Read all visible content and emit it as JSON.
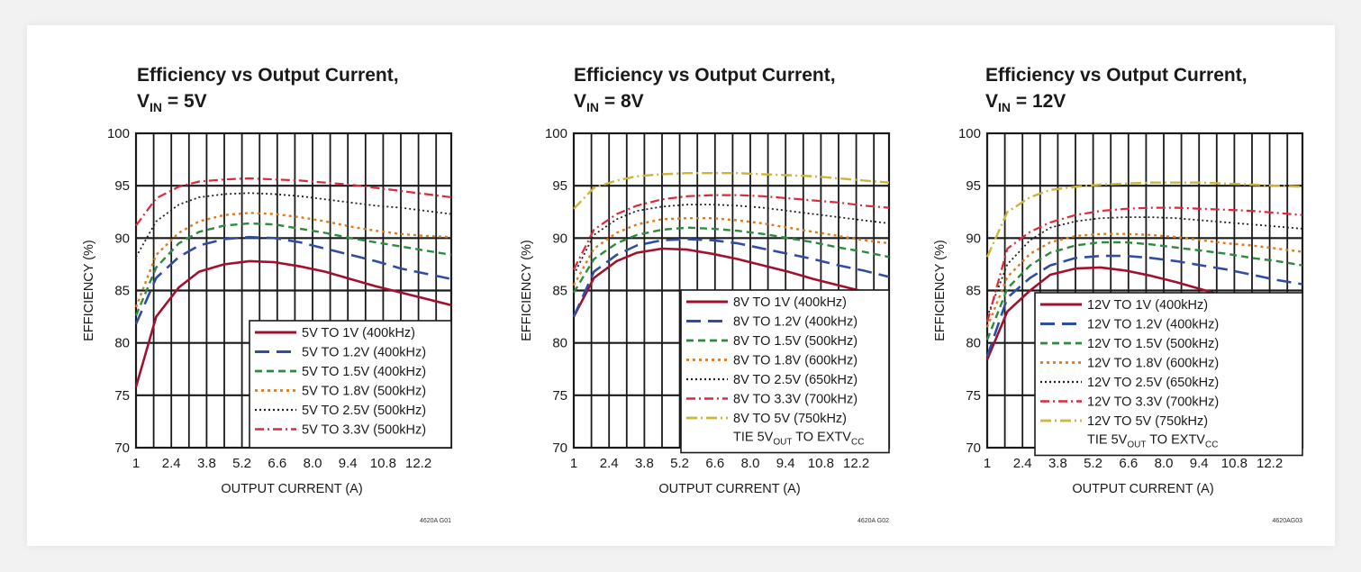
{
  "colors": {
    "grid": "#1a1a1a",
    "series": [
      "#a3102d",
      "#2f4ea1",
      "#2e8b3e",
      "#e07b1c",
      "#222222",
      "#e0283a",
      "#cdb53a"
    ]
  },
  "chart_data": [
    {
      "type": "line",
      "title": "Efficiency vs Output Current,",
      "subtitle_v": "V",
      "subtitle_sub": "IN",
      "subtitle_rest": " = 5V",
      "xlabel": "OUTPUT CURRENT (A)",
      "ylabel": "EFFICIENCY (%)",
      "xlim": [
        1,
        13.5
      ],
      "ylim": [
        70,
        100
      ],
      "xticks": [
        "1",
        "2.4",
        "3.8",
        "5.2",
        "6.6",
        "8.0",
        "9.4",
        "10.8",
        "12.2"
      ],
      "yticks": [
        "70",
        "75",
        "80",
        "85",
        "90",
        "95",
        "100"
      ],
      "grid": true,
      "legend_position": "bottom-right",
      "note": "",
      "code": "4620A G01",
      "series": [
        {
          "name": "5V TO 1V (400kHz)",
          "style": "solid",
          "x": [
            1,
            1.8,
            2.7,
            3.5,
            4.5,
            5.5,
            6.5,
            7.5,
            8.5,
            9.5,
            10.5,
            11.5,
            12.5,
            13.5
          ],
          "y": [
            75.8,
            82.5,
            85.3,
            86.8,
            87.5,
            87.8,
            87.7,
            87.3,
            86.8,
            86.1,
            85.4,
            84.8,
            84.2,
            83.6
          ]
        },
        {
          "name": "5V TO 1.2V (400kHz)",
          "style": "longdash",
          "x": [
            1,
            1.8,
            2.7,
            3.5,
            4.5,
            5.5,
            6.5,
            7.5,
            8.5,
            9.5,
            10.5,
            11.5,
            12.5,
            13.5
          ],
          "y": [
            81.8,
            86.2,
            88.2,
            89.3,
            89.9,
            90.1,
            90.0,
            89.6,
            89.0,
            88.4,
            87.8,
            87.1,
            86.6,
            86.1
          ]
        },
        {
          "name": "5V TO 1.5V (400kHz)",
          "style": "dash",
          "x": [
            1,
            1.8,
            2.7,
            3.5,
            4.5,
            5.5,
            6.5,
            7.5,
            8.5,
            9.5,
            10.5,
            11.5,
            12.5,
            13.5
          ],
          "y": [
            82.6,
            87.2,
            89.5,
            90.6,
            91.2,
            91.4,
            91.3,
            90.9,
            90.5,
            90.0,
            89.6,
            89.2,
            88.8,
            88.4
          ]
        },
        {
          "name": "5V TO 1.8V (500kHz)",
          "style": "dot-orange",
          "x": [
            1,
            1.8,
            2.7,
            3.5,
            4.5,
            5.5,
            6.5,
            7.5,
            8.5,
            9.5,
            10.5,
            11.5,
            12.5,
            13.5
          ],
          "y": [
            83.4,
            88.4,
            90.5,
            91.6,
            92.2,
            92.4,
            92.3,
            92.0,
            91.6,
            91.1,
            90.7,
            90.4,
            90.2,
            90.1
          ]
        },
        {
          "name": "5V TO 2.5V (500kHz)",
          "style": "dot",
          "x": [
            1,
            1.8,
            2.7,
            3.5,
            4.5,
            5.5,
            6.5,
            7.5,
            8.5,
            9.5,
            10.5,
            11.5,
            12.5,
            13.5
          ],
          "y": [
            88.2,
            91.6,
            93.2,
            93.9,
            94.2,
            94.3,
            94.2,
            94.0,
            93.7,
            93.4,
            93.1,
            92.9,
            92.6,
            92.3
          ]
        },
        {
          "name": "5V TO 3.3V (500kHz)",
          "style": "dashdot",
          "x": [
            1,
            1.8,
            2.7,
            3.5,
            4.5,
            5.5,
            6.5,
            7.5,
            8.5,
            9.5,
            10.5,
            11.5,
            12.5,
            13.5
          ],
          "y": [
            91.2,
            93.8,
            94.9,
            95.4,
            95.6,
            95.7,
            95.6,
            95.5,
            95.3,
            95.1,
            94.8,
            94.5,
            94.2,
            93.9
          ]
        }
      ]
    },
    {
      "type": "line",
      "title": "Efficiency vs Output Current,",
      "subtitle_v": "V",
      "subtitle_sub": "IN",
      "subtitle_rest": " = 8V",
      "xlabel": "OUTPUT CURRENT (A)",
      "ylabel": "EFFICIENCY (%)",
      "xlim": [
        1,
        13.5
      ],
      "ylim": [
        70,
        100
      ],
      "xticks": [
        "1",
        "2.4",
        "3.8",
        "5.2",
        "6.6",
        "8.0",
        "9.4",
        "10.8",
        "12.2"
      ],
      "yticks": [
        "70",
        "75",
        "80",
        "85",
        "90",
        "95",
        "100"
      ],
      "grid": true,
      "legend_position": "bottom-right",
      "note": "TIE 5V",
      "note_sub": "OUT",
      "note_mid": " TO EXTV",
      "note_sub2": "CC",
      "code": "4620A G02",
      "series": [
        {
          "name": "8V TO 1V (400kHz)",
          "style": "solid",
          "x": [
            1,
            1.8,
            2.7,
            3.5,
            4.5,
            5.5,
            6.5,
            7.5,
            8.5,
            9.5,
            10.5,
            11.5,
            12.5,
            13.5
          ],
          "y": [
            82.5,
            86.2,
            87.8,
            88.6,
            89.0,
            88.9,
            88.5,
            88.0,
            87.4,
            86.8,
            86.1,
            85.5,
            84.9,
            84.3
          ]
        },
        {
          "name": "8V TO 1.2V (400kHz)",
          "style": "longdash",
          "x": [
            1,
            1.8,
            2.7,
            3.5,
            4.5,
            5.5,
            6.5,
            7.5,
            8.5,
            9.5,
            10.5,
            11.5,
            12.5,
            13.5
          ],
          "y": [
            82.5,
            86.8,
            88.4,
            89.3,
            89.8,
            89.9,
            89.8,
            89.5,
            89.0,
            88.5,
            88.0,
            87.4,
            86.9,
            86.3
          ]
        },
        {
          "name": "8V TO 1.5V (500kHz)",
          "style": "dash",
          "x": [
            1,
            1.8,
            2.7,
            3.5,
            4.5,
            5.5,
            6.5,
            7.5,
            8.5,
            9.5,
            10.5,
            11.5,
            12.5,
            13.5
          ],
          "y": [
            84.8,
            88.0,
            89.5,
            90.3,
            90.8,
            91.0,
            90.9,
            90.7,
            90.4,
            90.0,
            89.6,
            89.1,
            88.7,
            88.2
          ]
        },
        {
          "name": "8V TO 1.8V (600kHz)",
          "style": "dot-orange",
          "x": [
            1,
            1.8,
            2.7,
            3.5,
            4.5,
            5.5,
            6.5,
            7.5,
            8.5,
            9.5,
            10.5,
            11.5,
            12.5,
            13.5
          ],
          "y": [
            85.5,
            89.0,
            90.5,
            91.3,
            91.8,
            91.9,
            91.9,
            91.7,
            91.4,
            91.0,
            90.6,
            90.2,
            89.8,
            89.5
          ]
        },
        {
          "name": "8V TO 2.5V (650kHz)",
          "style": "dot",
          "x": [
            1,
            1.8,
            2.7,
            3.5,
            4.5,
            5.5,
            6.5,
            7.5,
            8.5,
            9.5,
            10.5,
            11.5,
            12.5,
            13.5
          ],
          "y": [
            86.5,
            90.3,
            91.8,
            92.6,
            93.0,
            93.2,
            93.2,
            93.1,
            92.9,
            92.6,
            92.3,
            92.0,
            91.7,
            91.4
          ]
        },
        {
          "name": "8V TO 3.3V (700kHz)",
          "style": "dashdot",
          "x": [
            1,
            1.8,
            2.7,
            3.5,
            4.5,
            5.5,
            6.5,
            7.5,
            8.5,
            9.5,
            10.5,
            11.5,
            12.5,
            13.5
          ],
          "y": [
            87.0,
            90.8,
            92.3,
            93.1,
            93.7,
            94.0,
            94.1,
            94.1,
            94.0,
            93.8,
            93.6,
            93.4,
            93.1,
            92.9
          ]
        },
        {
          "name": "8V TO 5V (750kHz)",
          "style": "dashdot-gold",
          "x": [
            1,
            1.8,
            2.7,
            3.5,
            4.5,
            5.5,
            6.5,
            7.5,
            8.5,
            9.5,
            10.5,
            11.5,
            12.5,
            13.5
          ],
          "y": [
            92.8,
            94.8,
            95.5,
            95.9,
            96.1,
            96.2,
            96.2,
            96.2,
            96.1,
            96.0,
            95.9,
            95.7,
            95.5,
            95.3
          ]
        }
      ]
    },
    {
      "type": "line",
      "title": "Efficiency vs Output Current,",
      "subtitle_v": "V",
      "subtitle_sub": "IN",
      "subtitle_rest": " = 12V",
      "xlabel": "OUTPUT CURRENT (A)",
      "ylabel": "EFFICIENCY (%)",
      "xlim": [
        1,
        13.5
      ],
      "ylim": [
        70,
        100
      ],
      "xticks": [
        "1",
        "2.4",
        "3.8",
        "5.2",
        "6.6",
        "8.0",
        "9.4",
        "10.8",
        "12.2"
      ],
      "yticks": [
        "70",
        "75",
        "80",
        "85",
        "90",
        "95",
        "100"
      ],
      "grid": true,
      "legend_position": "bottom-right",
      "note": "TIE 5V",
      "note_sub": "OUT",
      "note_mid": " TO EXTV",
      "note_sub2": "CC",
      "code": "4620AG03",
      "series": [
        {
          "name": "12V TO 1V (400kHz)",
          "style": "solid",
          "x": [
            1,
            1.8,
            2.7,
            3.5,
            4.5,
            5.5,
            6.5,
            7.5,
            8.5,
            9.5,
            10.5,
            11.5,
            12.5,
            13.5
          ],
          "y": [
            78.4,
            83.0,
            85.0,
            86.5,
            87.1,
            87.2,
            86.9,
            86.4,
            85.8,
            85.1,
            84.4,
            83.7,
            83.0,
            82.4
          ]
        },
        {
          "name": "12V TO 1.2V (400kHz)",
          "style": "longdash",
          "x": [
            1,
            1.8,
            2.7,
            3.5,
            4.5,
            5.5,
            6.5,
            7.5,
            8.5,
            9.5,
            10.5,
            11.5,
            12.5,
            13.5
          ],
          "y": [
            78.7,
            84.3,
            86.2,
            87.4,
            88.1,
            88.3,
            88.3,
            88.1,
            87.8,
            87.4,
            87.0,
            86.5,
            86.0,
            85.6
          ]
        },
        {
          "name": "12V TO 1.5V (500kHz)",
          "style": "dash",
          "x": [
            1,
            1.8,
            2.7,
            3.5,
            4.5,
            5.5,
            6.5,
            7.5,
            8.5,
            9.5,
            10.5,
            11.5,
            12.5,
            13.5
          ],
          "y": [
            80.3,
            85.2,
            87.4,
            88.6,
            89.3,
            89.6,
            89.6,
            89.4,
            89.1,
            88.8,
            88.5,
            88.1,
            87.8,
            87.4
          ]
        },
        {
          "name": "12V TO 1.8V (600kHz)",
          "style": "dot-orange",
          "x": [
            1,
            1.8,
            2.7,
            3.5,
            4.5,
            5.5,
            6.5,
            7.5,
            8.5,
            9.5,
            10.5,
            11.5,
            12.5,
            13.5
          ],
          "y": [
            81.5,
            86.3,
            88.5,
            89.6,
            90.2,
            90.4,
            90.4,
            90.3,
            90.1,
            89.8,
            89.5,
            89.3,
            89.0,
            88.7
          ]
        },
        {
          "name": "12V TO 2.5V (650kHz)",
          "style": "dot",
          "x": [
            1,
            1.8,
            2.7,
            3.5,
            4.5,
            5.5,
            6.5,
            7.5,
            8.5,
            9.5,
            10.5,
            11.5,
            12.5,
            13.5
          ],
          "y": [
            82.5,
            87.5,
            89.8,
            91.0,
            91.6,
            91.9,
            92.0,
            92.0,
            91.9,
            91.7,
            91.5,
            91.3,
            91.1,
            90.9
          ]
        },
        {
          "name": "12V TO 3.3V (700kHz)",
          "style": "dashdot",
          "x": [
            1,
            1.8,
            2.7,
            3.5,
            4.5,
            5.5,
            6.5,
            7.5,
            8.5,
            9.5,
            10.5,
            11.5,
            12.5,
            13.5
          ],
          "y": [
            82.0,
            89.0,
            90.6,
            91.5,
            92.2,
            92.6,
            92.8,
            92.9,
            92.9,
            92.8,
            92.7,
            92.6,
            92.4,
            92.2
          ]
        },
        {
          "name": "12V TO 5V (750kHz)",
          "style": "dashdot-gold",
          "x": [
            1,
            1.8,
            2.7,
            3.5,
            4.5,
            5.5,
            6.5,
            7.5,
            8.5,
            9.5,
            10.5,
            11.5,
            12.5,
            13.5
          ],
          "y": [
            88.2,
            92.5,
            93.9,
            94.6,
            94.9,
            95.1,
            95.2,
            95.3,
            95.3,
            95.3,
            95.2,
            95.1,
            95.0,
            94.9
          ]
        }
      ]
    }
  ]
}
